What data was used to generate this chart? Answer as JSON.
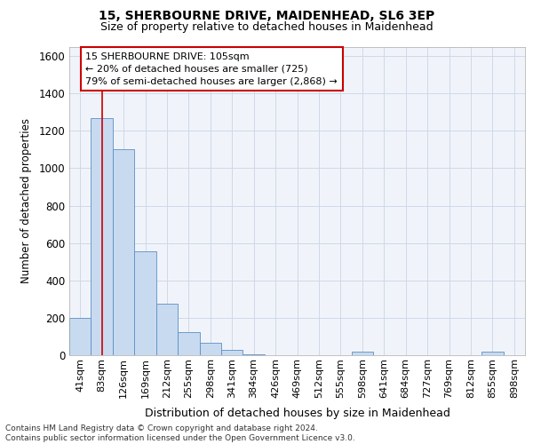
{
  "title_line1": "15, SHERBOURNE DRIVE, MAIDENHEAD, SL6 3EP",
  "title_line2": "Size of property relative to detached houses in Maidenhead",
  "xlabel": "Distribution of detached houses by size in Maidenhead",
  "ylabel": "Number of detached properties",
  "footer_line1": "Contains HM Land Registry data © Crown copyright and database right 2024.",
  "footer_line2": "Contains public sector information licensed under the Open Government Licence v3.0.",
  "categories": [
    "41sqm",
    "83sqm",
    "126sqm",
    "169sqm",
    "212sqm",
    "255sqm",
    "298sqm",
    "341sqm",
    "384sqm",
    "426sqm",
    "469sqm",
    "512sqm",
    "555sqm",
    "598sqm",
    "641sqm",
    "684sqm",
    "727sqm",
    "769sqm",
    "812sqm",
    "855sqm",
    "898sqm"
  ],
  "values": [
    200,
    1270,
    1100,
    555,
    275,
    125,
    65,
    30,
    5,
    0,
    0,
    0,
    0,
    20,
    0,
    0,
    0,
    0,
    0,
    20,
    0
  ],
  "bar_color": "#c8daf0",
  "bar_edge_color": "#5a8fc4",
  "background_color": "#ffffff",
  "plot_bg_color": "#f0f4fa",
  "grid_color": "#d0d8e8",
  "vline_x_index": 1,
  "vline_color": "#cc0000",
  "annotation_text": "15 SHERBOURNE DRIVE: 105sqm\n← 20% of detached houses are smaller (725)\n79% of semi-detached houses are larger (2,868) →",
  "annotation_box_facecolor": "#ffffff",
  "annotation_box_edgecolor": "#cc0000",
  "ylim": [
    0,
    1650
  ],
  "yticks": [
    0,
    200,
    400,
    600,
    800,
    1000,
    1200,
    1400,
    1600
  ]
}
